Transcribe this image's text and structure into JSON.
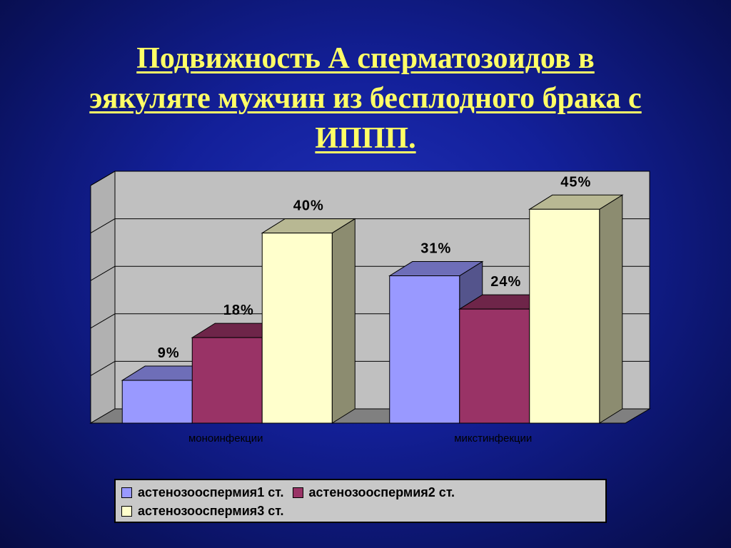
{
  "slide": {
    "title_lines": [
      "Подвижность А сперматозоидов в",
      "эякуляте мужчин из бесплодного брака с",
      "ИППП."
    ]
  },
  "chart_data": {
    "type": "bar",
    "style": "3d-clustered",
    "categories": [
      "моноинфекции",
      "микстинфекции"
    ],
    "series": [
      {
        "name": "астенозооспермия1 ст.",
        "values": [
          9,
          31
        ],
        "labels": [
          "9%",
          "31%"
        ],
        "color": "#9999ff"
      },
      {
        "name": "астенозооспермия2 ст.",
        "values": [
          18,
          24
        ],
        "labels": [
          "18%",
          "24%"
        ],
        "color": "#993366"
      },
      {
        "name": "астенозооспермия3 ст.",
        "values": [
          40,
          45
        ],
        "labels": [
          "40%",
          "45%"
        ],
        "color": "#ffffcc"
      }
    ],
    "ylim": [
      0,
      50
    ],
    "grid": true,
    "legend_position": "bottom",
    "wall_color": "#c0c0c0",
    "floor_color": "#808080"
  }
}
